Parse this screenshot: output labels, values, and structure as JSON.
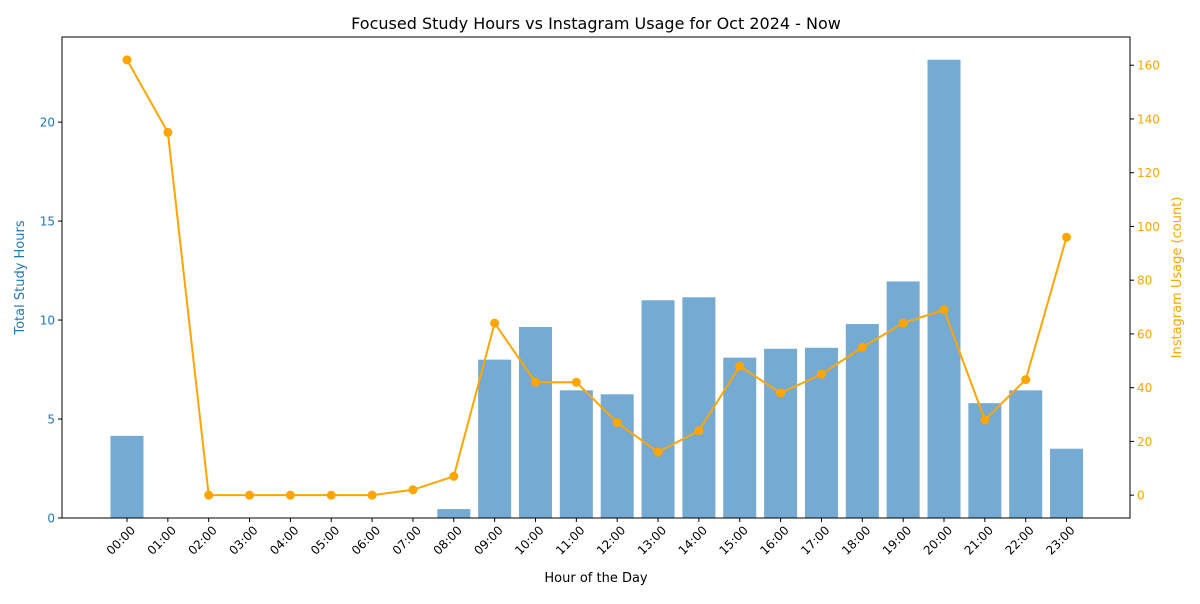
{
  "chart_data": {
    "type": "bar",
    "title": "Focused Study Hours vs Instagram Usage for Oct 2024 - Now",
    "xlabel": "Hour of the Day",
    "ylabel": "Total Study Hours",
    "y2label": "Instagram Usage (count)",
    "categories": [
      "00:00",
      "01:00",
      "02:00",
      "03:00",
      "04:00",
      "05:00",
      "06:00",
      "07:00",
      "08:00",
      "09:00",
      "10:00",
      "11:00",
      "12:00",
      "13:00",
      "14:00",
      "15:00",
      "16:00",
      "17:00",
      "18:00",
      "19:00",
      "20:00",
      "21:00",
      "22:00",
      "23:00"
    ],
    "series": [
      {
        "name": "Total Study Hours",
        "type": "bar",
        "axis": "left",
        "color": "#75aad2",
        "values": [
          4.15,
          0,
          0,
          0,
          0,
          0,
          0,
          0,
          0.45,
          8.0,
          9.65,
          6.45,
          6.25,
          11.0,
          11.15,
          8.1,
          8.55,
          8.6,
          9.8,
          11.95,
          23.15,
          5.8,
          6.45,
          3.5
        ]
      },
      {
        "name": "Instagram Usage (count)",
        "type": "line",
        "axis": "right",
        "color": "#ffa500",
        "values": [
          162,
          135,
          0,
          0,
          0,
          0,
          0,
          2,
          7,
          64,
          42,
          42,
          27,
          16,
          24,
          48,
          38,
          45,
          55,
          64,
          69,
          28,
          43,
          96
        ]
      }
    ],
    "ylim": [
      0,
      24.3
    ],
    "y2lim": [
      -8.5,
      170.5
    ],
    "yticks": [
      "0",
      "5",
      "10",
      "15",
      "20"
    ],
    "y2ticks": [
      "0",
      "20",
      "40",
      "60",
      "80",
      "100",
      "120",
      "140",
      "160"
    ],
    "left_axis_color": "#1f77b4",
    "right_axis_color": "#ffa500",
    "grid": false,
    "legend": "none"
  }
}
